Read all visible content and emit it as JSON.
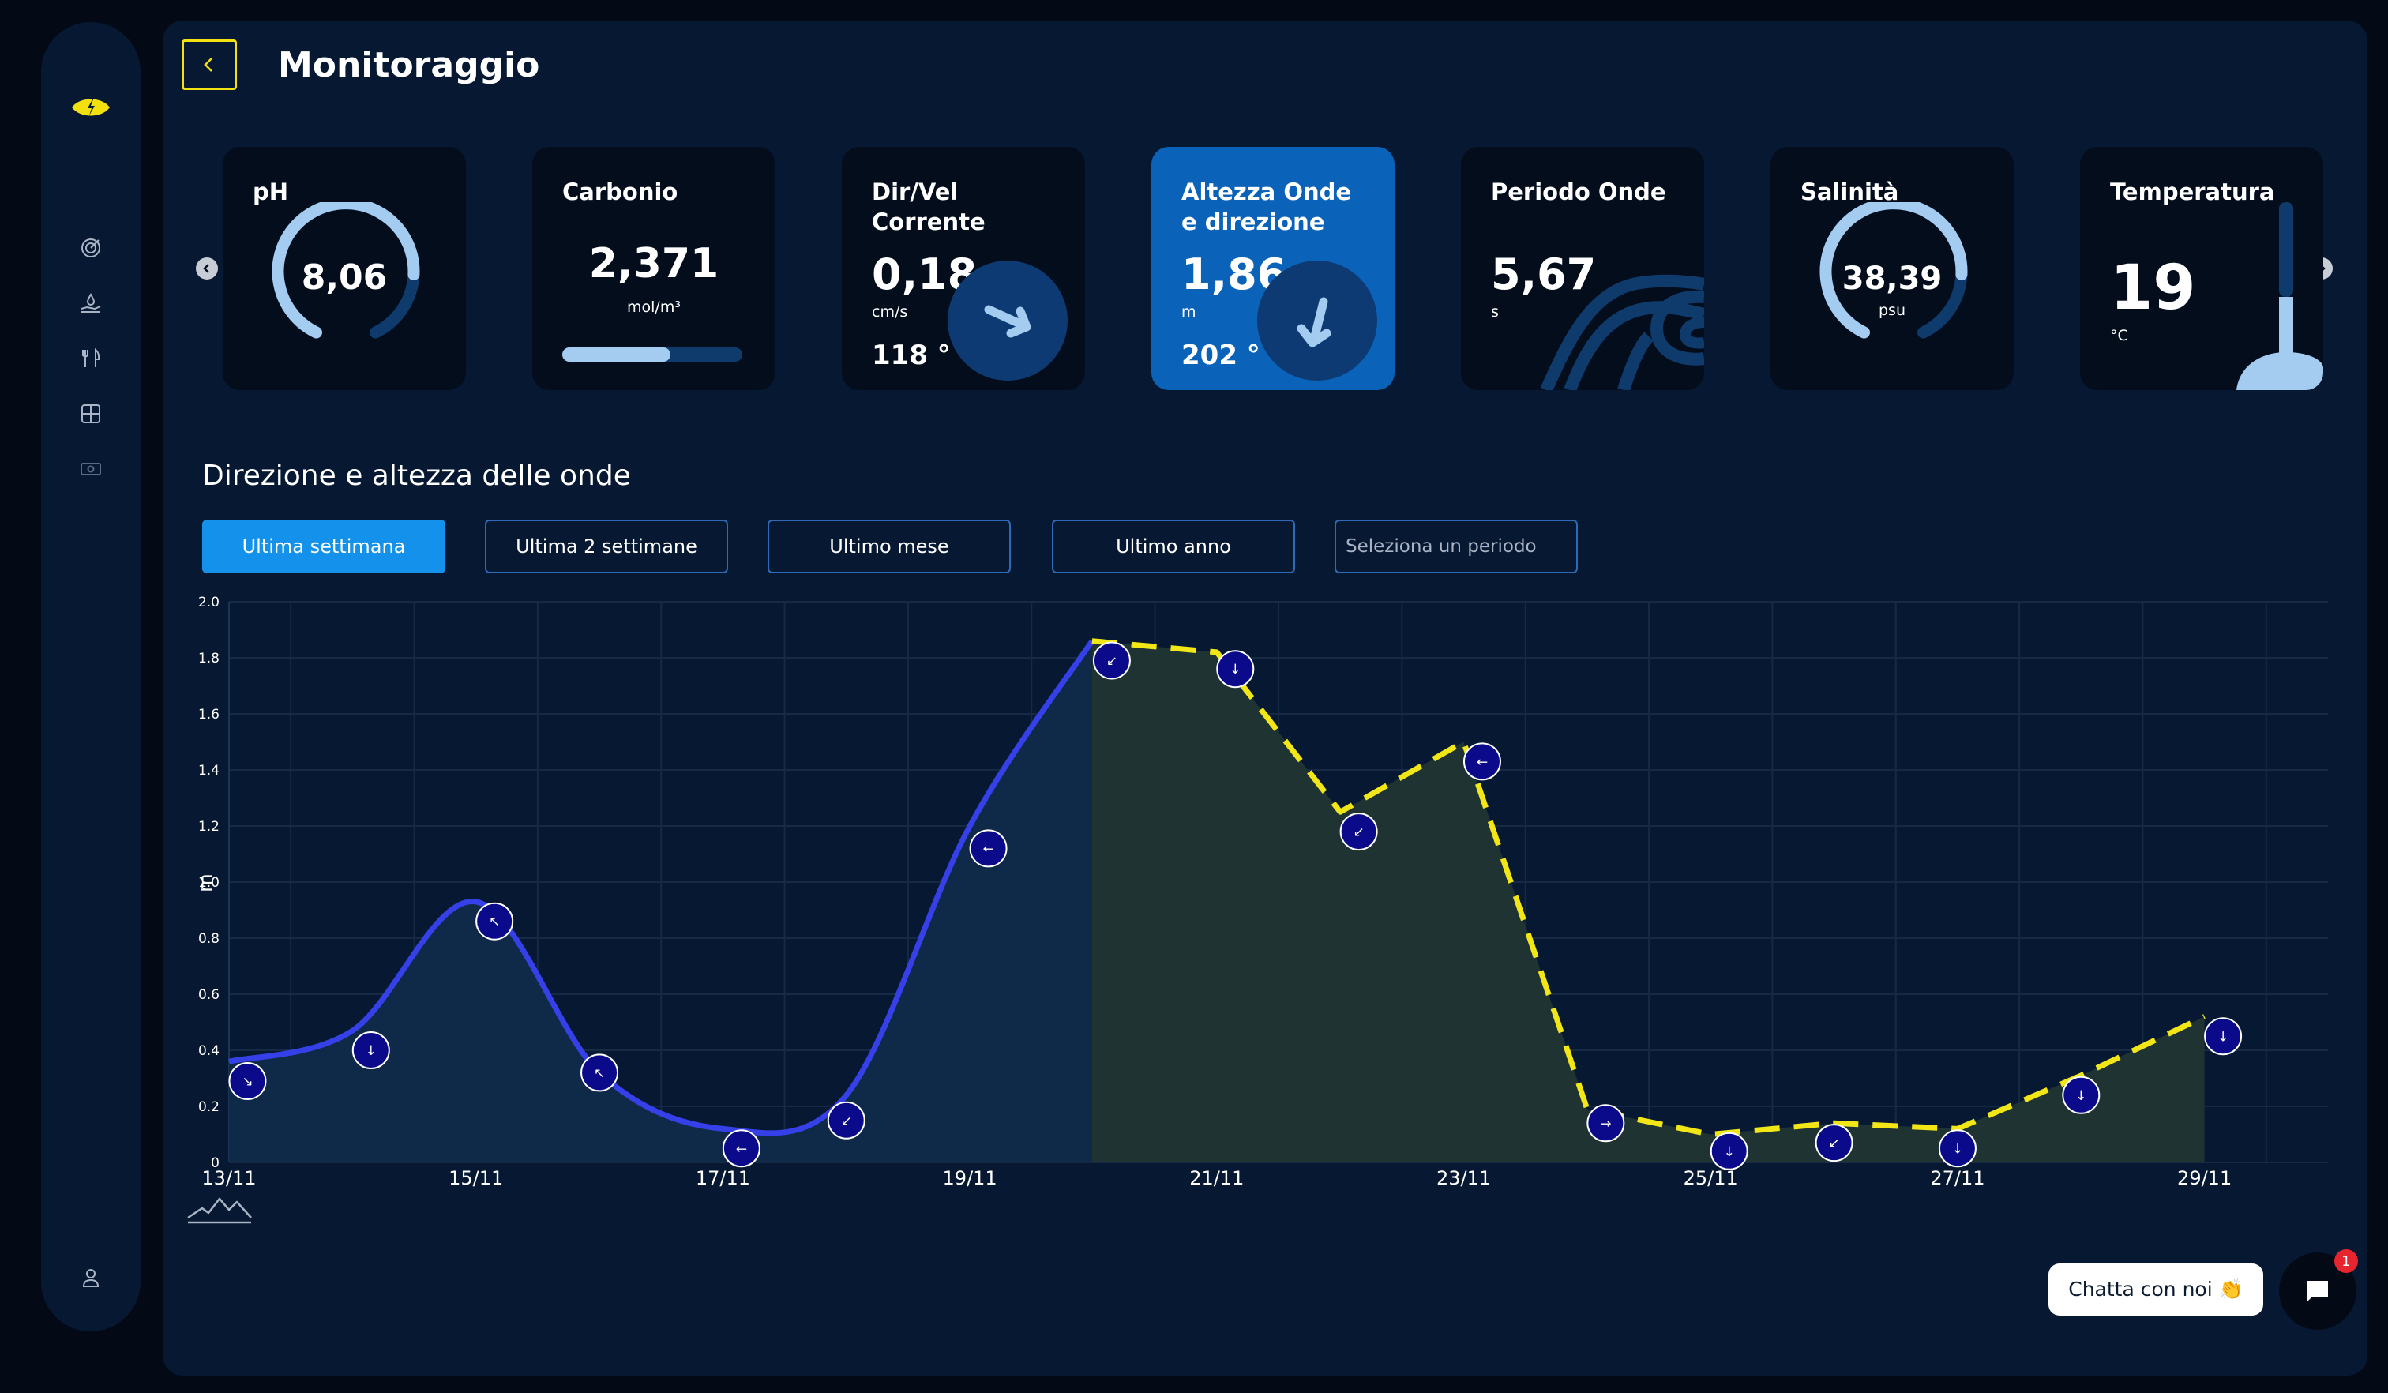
{
  "sidebar": {
    "items": [
      {
        "icon": "radar-icon"
      },
      {
        "icon": "hand-water-icon"
      },
      {
        "icon": "restaurant-icon"
      },
      {
        "icon": "grid-icon"
      },
      {
        "icon": "money-icon"
      }
    ],
    "profile_icon": "user-icon"
  },
  "header": {
    "title": "Monitoraggio"
  },
  "cards": {
    "ph": {
      "title": "pH",
      "value": "8,06",
      "level": 0.8
    },
    "carbonio": {
      "title": "Carbonio",
      "value": "2,371",
      "unit": "mol/m³",
      "level": 0.6
    },
    "corrente": {
      "title_line1": "Dir/Vel",
      "title_line2": "Corrente",
      "value": "0,18",
      "unit": "cm/s",
      "direction": "118 °"
    },
    "onde": {
      "title_line1": "Altezza Onde",
      "title_line2": "e direzione",
      "value": "1,86",
      "unit": "m",
      "direction": "202 °"
    },
    "periodo": {
      "title": "Periodo Onde",
      "value": "5,67",
      "unit": "s"
    },
    "salinita": {
      "title": "Salinità",
      "value": "38,39",
      "unit": "psu",
      "level": 0.8
    },
    "temperatura": {
      "title": "Temperatura",
      "value": "19",
      "unit": "°C"
    }
  },
  "section": {
    "title": "Direzione e altezza delle onde"
  },
  "filters": {
    "last_week": "Ultima settimana",
    "last_2_weeks": "Ultima 2 settimane",
    "last_month": "Ultimo mese",
    "last_year": "Ultimo anno",
    "period_placeholder": "Seleziona un periodo"
  },
  "chart_data": {
    "type": "line",
    "ylabel": "m",
    "ylim": [
      0,
      2.0
    ],
    "yticks": [
      "0",
      "0.2",
      "0.4",
      "0.6",
      "0.8",
      "1.0",
      "1.2",
      "1.4",
      "1.6",
      "1.8",
      "2.0"
    ],
    "xlim": [
      13,
      30
    ],
    "xticks": [
      {
        "x": 13,
        "label": "13/11"
      },
      {
        "x": 15,
        "label": "15/11"
      },
      {
        "x": 17,
        "label": "17/11"
      },
      {
        "x": 19,
        "label": "19/11"
      },
      {
        "x": 21,
        "label": "21/11"
      },
      {
        "x": 23,
        "label": "23/11"
      },
      {
        "x": 25,
        "label": "25/11"
      },
      {
        "x": 27,
        "label": "27/11"
      },
      {
        "x": 29,
        "label": "29/11"
      }
    ],
    "grid": true,
    "series": [
      {
        "style": "solid",
        "color": "#3540e8",
        "points": [
          [
            13,
            0.36
          ],
          [
            14,
            0.47
          ],
          [
            15,
            0.93
          ],
          [
            16,
            0.32
          ],
          [
            17,
            0.12
          ],
          [
            18,
            0.24
          ],
          [
            19,
            1.2
          ],
          [
            19.99,
            1.86
          ]
        ]
      },
      {
        "style": "dashed",
        "color": "#f2e616",
        "points": [
          [
            19.99,
            1.86
          ],
          [
            21,
            1.82
          ],
          [
            22,
            1.25
          ],
          [
            23,
            1.5
          ],
          [
            24,
            0.19
          ],
          [
            25,
            0.1
          ],
          [
            26,
            0.14
          ],
          [
            27,
            0.12
          ],
          [
            28,
            0.31
          ],
          [
            29,
            0.52
          ]
        ]
      }
    ],
    "direction_markers": [
      {
        "x": 13.15,
        "y": 0.29,
        "arrow": "↘"
      },
      {
        "x": 14.15,
        "y": 0.4,
        "arrow": "↓"
      },
      {
        "x": 15.15,
        "y": 0.86,
        "arrow": "↖"
      },
      {
        "x": 16.0,
        "y": 0.32,
        "arrow": "↖"
      },
      {
        "x": 17.15,
        "y": 0.05,
        "arrow": "←"
      },
      {
        "x": 18.0,
        "y": 0.15,
        "arrow": "↙"
      },
      {
        "x": 19.15,
        "y": 1.12,
        "arrow": "←"
      },
      {
        "x": 20.15,
        "y": 1.79,
        "arrow": "↙"
      },
      {
        "x": 21.15,
        "y": 1.76,
        "arrow": "↓"
      },
      {
        "x": 22.15,
        "y": 1.18,
        "arrow": "↙"
      },
      {
        "x": 23.15,
        "y": 1.43,
        "arrow": "←"
      },
      {
        "x": 24.15,
        "y": 0.14,
        "arrow": "→"
      },
      {
        "x": 25.15,
        "y": 0.04,
        "arrow": "↓"
      },
      {
        "x": 26.0,
        "y": 0.07,
        "arrow": "↙"
      },
      {
        "x": 27.0,
        "y": 0.05,
        "arrow": "↓"
      },
      {
        "x": 28.0,
        "y": 0.24,
        "arrow": "↓"
      },
      {
        "x": 29.15,
        "y": 0.45,
        "arrow": "↓"
      }
    ],
    "fill_colors": {
      "blue": "#0f2a48",
      "yellow": "#1f3333"
    }
  },
  "chat": {
    "label": "Chatta con noi 👏",
    "badge": "1"
  },
  "colors": {
    "accent": "#f2e10e",
    "active_card": "#0a63b8",
    "active_filter": "#1491ea",
    "light_blue": "#a3ccf0"
  }
}
